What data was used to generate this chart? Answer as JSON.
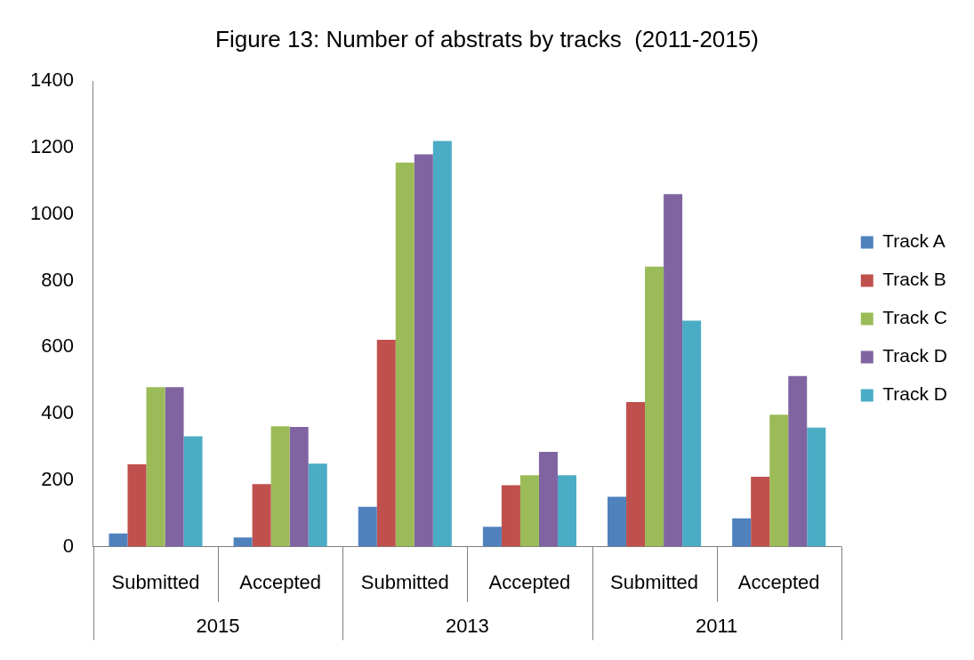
{
  "chart_data": {
    "type": "bar",
    "title": "Figure 13: Number of abstrats by tracks  (2011-2015)",
    "categories": [
      "Submitted",
      "Accepted",
      "Submitted",
      "Accepted",
      "Submitted",
      "Accepted"
    ],
    "series": [
      {
        "name": "Track A",
        "color": "#4f81bd",
        "values": [
          40,
          28,
          120,
          60,
          150,
          85
        ]
      },
      {
        "name": "Track B",
        "color": "#c0504d",
        "values": [
          248,
          188,
          622,
          185,
          435,
          210
        ]
      },
      {
        "name": "Track C",
        "color": "#9bbb59",
        "values": [
          480,
          362,
          1155,
          215,
          842,
          397
        ]
      },
      {
        "name": "Track D",
        "color": "#8064a2",
        "values": [
          480,
          360,
          1180,
          285,
          1060,
          513
        ]
      },
      {
        "name": "Track D",
        "color": "#4bacc6",
        "values": [
          332,
          250,
          1220,
          215,
          680,
          358
        ]
      }
    ],
    "ylim": [
      0,
      1400
    ],
    "yticks": [
      0,
      200,
      400,
      600,
      800,
      1000,
      1200,
      1400
    ],
    "grid": false,
    "legend": "right",
    "annotations": [
      "2015",
      "2013",
      "2011"
    ]
  }
}
